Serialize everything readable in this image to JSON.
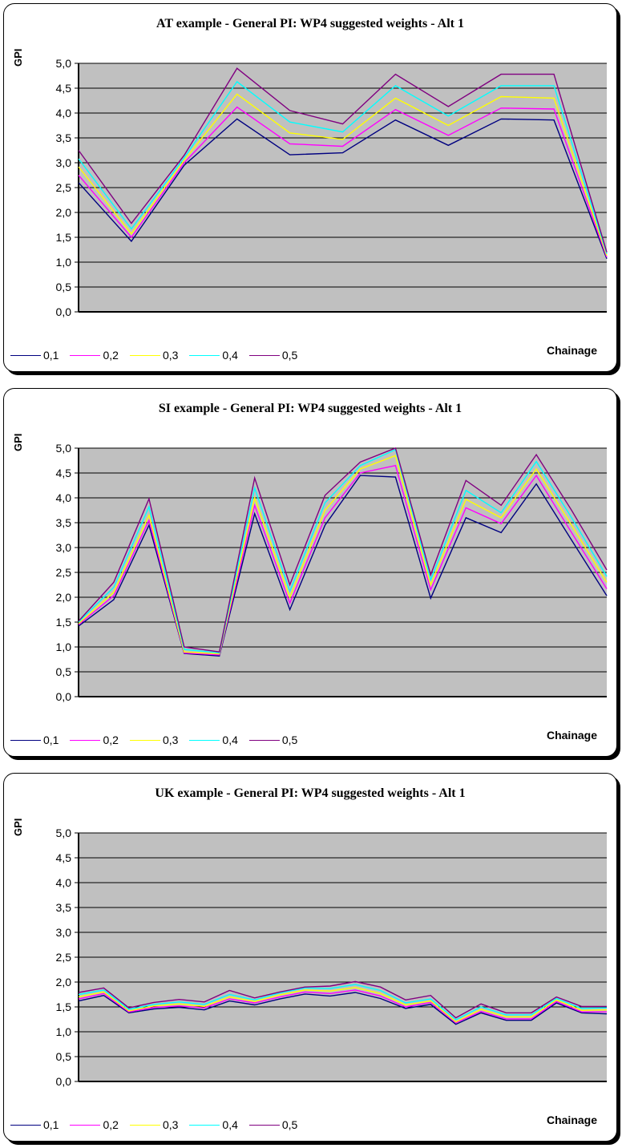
{
  "chart_data": [
    {
      "type": "line",
      "title": "AT example - General PI: WP4 suggested weights - Alt 1",
      "ylabel": "GPI",
      "xlabel": "Chainage",
      "ylim": [
        0,
        5
      ],
      "yticks": [
        "0,0",
        "0,5",
        "1,0",
        "1,5",
        "2,0",
        "2,5",
        "3,0",
        "3,5",
        "4,0",
        "4,5",
        "5,0"
      ],
      "grid": true,
      "legend": "bottom-left",
      "series": [
        {
          "name": "0,1",
          "color": "#000080",
          "x": [
            0,
            1,
            2,
            3,
            4,
            5,
            6,
            7,
            8,
            9
          ],
          "values": [
            2.6,
            1.42,
            2.95,
            3.88,
            3.16,
            3.2,
            3.86,
            3.35,
            3.88,
            3.86
          ]
        },
        {
          "name": "0,2",
          "color": "#ff00ff",
          "x": [
            0,
            1,
            2,
            3,
            4,
            5,
            6,
            7,
            8,
            9
          ],
          "values": [
            2.75,
            1.5,
            3.0,
            4.12,
            3.38,
            3.33,
            4.07,
            3.55,
            4.1,
            4.08
          ]
        },
        {
          "name": "0,3",
          "color": "#ffff00",
          "x": [
            0,
            1,
            2,
            3,
            4,
            5,
            6,
            7,
            8,
            9
          ],
          "values": [
            2.92,
            1.57,
            3.05,
            4.38,
            3.6,
            3.47,
            4.3,
            3.75,
            4.33,
            4.3
          ]
        },
        {
          "name": "0,4",
          "color": "#00ffff",
          "x": [
            0,
            1,
            2,
            3,
            4,
            5,
            6,
            7,
            8,
            9
          ],
          "values": [
            3.08,
            1.67,
            3.1,
            4.63,
            3.82,
            3.62,
            4.55,
            3.94,
            4.55,
            4.55
          ]
        },
        {
          "name": "0,5",
          "color": "#800080",
          "x": [
            0,
            1,
            2,
            3,
            4,
            5,
            6,
            7,
            8,
            9
          ],
          "values": [
            3.25,
            1.78,
            3.15,
            4.9,
            4.05,
            3.78,
            4.78,
            4.13,
            4.78,
            4.78
          ]
        }
      ],
      "tail": {
        "x": 10,
        "values": [
          1.07,
          1.1,
          1.13,
          1.17,
          1.2
        ]
      }
    },
    {
      "type": "line",
      "title": "SI example - General PI: WP4 suggested weights - Alt 1",
      "ylabel": "GPI",
      "xlabel": "Chainage",
      "ylim": [
        0,
        5
      ],
      "yticks": [
        "0,0",
        "0,5",
        "1,0",
        "1,5",
        "2,0",
        "2,5",
        "3,0",
        "3,5",
        "4,0",
        "4,5",
        "5,0"
      ],
      "grid": true,
      "legend": "bottom-left",
      "series": [
        {
          "name": "0,1",
          "color": "#000080",
          "x": [
            0,
            1,
            2,
            3,
            4,
            5,
            6,
            7,
            8,
            9,
            10,
            11,
            12,
            13,
            14,
            15
          ],
          "values": [
            1.42,
            1.95,
            3.45,
            0.87,
            0.82,
            3.68,
            1.75,
            3.45,
            4.45,
            4.42,
            1.98,
            3.6,
            3.3,
            4.28,
            3.15,
            2.03
          ]
        },
        {
          "name": "0,2",
          "color": "#ff00ff",
          "x": [
            0,
            1,
            2,
            3,
            4,
            5,
            6,
            7,
            8,
            9,
            10,
            11,
            12,
            13,
            14,
            15
          ],
          "values": [
            1.45,
            2.03,
            3.55,
            0.88,
            0.84,
            3.85,
            1.88,
            3.6,
            4.5,
            4.65,
            2.15,
            3.8,
            3.48,
            4.45,
            3.3,
            2.17
          ]
        },
        {
          "name": "0,3",
          "color": "#ffff00",
          "x": [
            0,
            1,
            2,
            3,
            4,
            5,
            6,
            7,
            8,
            9,
            10,
            11,
            12,
            13,
            14,
            15
          ],
          "values": [
            1.47,
            2.1,
            3.65,
            0.9,
            0.86,
            4.0,
            2.0,
            3.75,
            4.58,
            4.85,
            2.25,
            3.97,
            3.6,
            4.58,
            3.45,
            2.3
          ]
        },
        {
          "name": "0,4",
          "color": "#00ffff",
          "x": [
            0,
            1,
            2,
            3,
            4,
            5,
            6,
            7,
            8,
            9,
            10,
            11,
            12,
            13,
            14,
            15
          ],
          "values": [
            1.5,
            2.2,
            3.82,
            0.95,
            0.88,
            4.2,
            2.12,
            3.9,
            4.65,
            4.97,
            2.35,
            4.15,
            3.7,
            4.73,
            3.6,
            2.42
          ]
        },
        {
          "name": "0,5",
          "color": "#800080",
          "x": [
            0,
            1,
            2,
            3,
            4,
            5,
            6,
            7,
            8,
            9,
            10,
            11,
            12,
            13,
            14,
            15
          ],
          "values": [
            1.52,
            2.3,
            3.98,
            1.0,
            0.9,
            4.4,
            2.25,
            4.05,
            4.72,
            5.0,
            2.45,
            4.35,
            3.85,
            4.87,
            3.75,
            2.55
          ]
        }
      ]
    },
    {
      "type": "line",
      "title": "UK example - General PI: WP4 suggested weights - Alt 1",
      "ylabel": "GPI",
      "xlabel": "Chainage",
      "ylim": [
        0,
        5
      ],
      "yticks": [
        "0,0",
        "0,5",
        "1,0",
        "1,5",
        "2,0",
        "2,5",
        "3,0",
        "3,5",
        "4,0",
        "4,5",
        "5,0"
      ],
      "grid": true,
      "legend": "bottom-left",
      "series": [
        {
          "name": "0,1",
          "color": "#000080",
          "x": [
            0,
            1,
            2,
            3,
            4,
            5,
            6,
            7,
            8,
            9,
            10,
            11,
            12,
            13,
            14,
            15,
            16,
            17,
            18,
            19,
            20,
            21
          ],
          "values": [
            1.62,
            1.73,
            1.38,
            1.46,
            1.49,
            1.44,
            1.62,
            1.54,
            1.66,
            1.76,
            1.72,
            1.79,
            1.67,
            1.47,
            1.55,
            1.15,
            1.38,
            1.23,
            1.23,
            1.58,
            1.38,
            1.36
          ]
        },
        {
          "name": "0,2",
          "color": "#ff00ff",
          "x": [
            0,
            1,
            2,
            3,
            4,
            5,
            6,
            7,
            8,
            9,
            10,
            11,
            12,
            13,
            14,
            15,
            16,
            17,
            18,
            19,
            20,
            21
          ],
          "values": [
            1.66,
            1.77,
            1.4,
            1.49,
            1.52,
            1.48,
            1.66,
            1.58,
            1.7,
            1.8,
            1.77,
            1.84,
            1.72,
            1.5,
            1.59,
            1.18,
            1.41,
            1.26,
            1.26,
            1.61,
            1.4,
            1.4
          ]
        },
        {
          "name": "0,3",
          "color": "#ffff00",
          "x": [
            0,
            1,
            2,
            3,
            4,
            5,
            6,
            7,
            8,
            9,
            10,
            11,
            12,
            13,
            14,
            15,
            16,
            17,
            18,
            19,
            20,
            21
          ],
          "values": [
            1.7,
            1.8,
            1.42,
            1.52,
            1.56,
            1.51,
            1.7,
            1.61,
            1.74,
            1.84,
            1.82,
            1.89,
            1.77,
            1.54,
            1.62,
            1.2,
            1.45,
            1.3,
            1.3,
            1.64,
            1.43,
            1.44
          ]
        },
        {
          "name": "0,4",
          "color": "#00ffff",
          "x": [
            0,
            1,
            2,
            3,
            4,
            5,
            6,
            7,
            8,
            9,
            10,
            11,
            12,
            13,
            14,
            15,
            16,
            17,
            18,
            19,
            20,
            21
          ],
          "values": [
            1.75,
            1.84,
            1.45,
            1.55,
            1.6,
            1.55,
            1.75,
            1.64,
            1.78,
            1.88,
            1.87,
            1.95,
            1.83,
            1.58,
            1.66,
            1.24,
            1.5,
            1.34,
            1.34,
            1.67,
            1.47,
            1.48
          ]
        },
        {
          "name": "0,5",
          "color": "#800080",
          "x": [
            0,
            1,
            2,
            3,
            4,
            5,
            6,
            7,
            8,
            9,
            10,
            11,
            12,
            13,
            14,
            15,
            16,
            17,
            18,
            19,
            20,
            21
          ],
          "values": [
            1.79,
            1.88,
            1.48,
            1.59,
            1.65,
            1.6,
            1.83,
            1.68,
            1.8,
            1.9,
            1.92,
            2.01,
            1.9,
            1.64,
            1.73,
            1.28,
            1.56,
            1.38,
            1.38,
            1.7,
            1.51,
            1.51
          ]
        }
      ]
    }
  ]
}
